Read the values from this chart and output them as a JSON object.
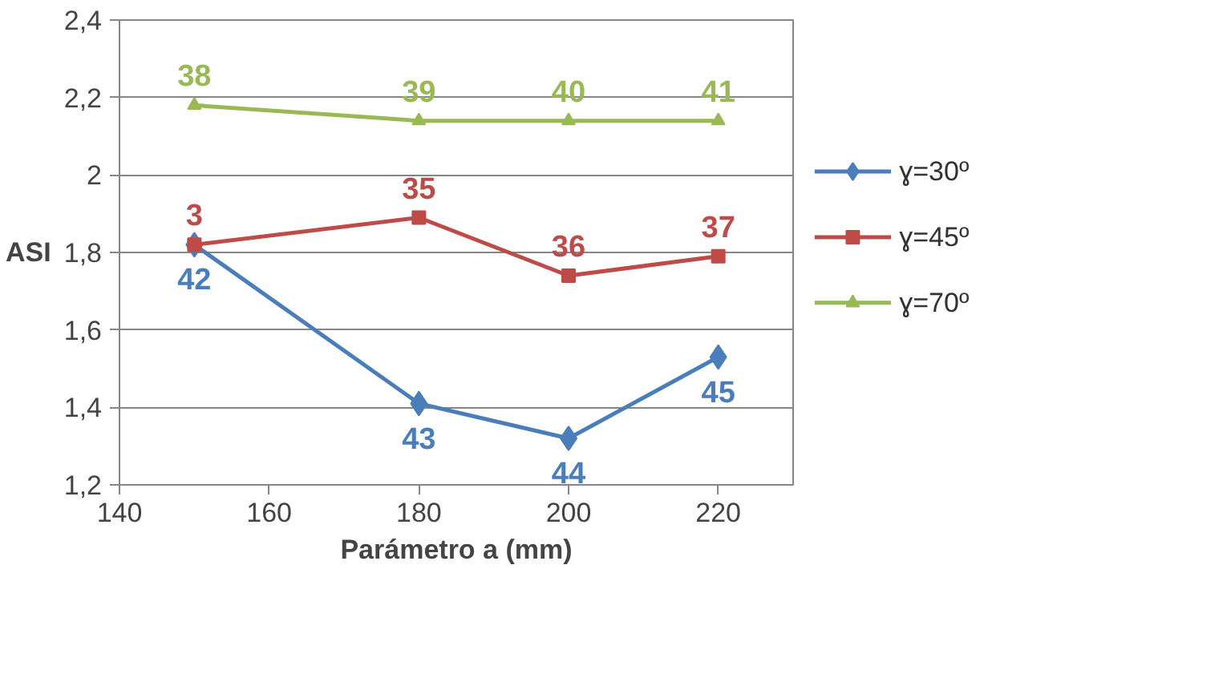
{
  "chart_data": {
    "type": "line",
    "xlabel": "Parámetro a (mm)",
    "ylabel": "ASI",
    "x": [
      150,
      180,
      200,
      220
    ],
    "series": [
      {
        "name": "ɣ=30º",
        "color": "#4a7ebb",
        "marker": "diamond",
        "values": [
          1.82,
          1.41,
          1.32,
          1.53
        ]
      },
      {
        "name": "ɣ=45º",
        "color": "#be4b48",
        "marker": "square",
        "values": [
          1.82,
          1.89,
          1.74,
          1.79
        ]
      },
      {
        "name": "ɣ=70º",
        "color": "#98b954",
        "marker": "triangle",
        "values": [
          2.18,
          2.14,
          2.14,
          2.14
        ]
      }
    ],
    "annotations": [
      {
        "text": "42",
        "x": 150,
        "y": 1.82
      },
      {
        "text": "43",
        "x": 180,
        "y": 1.41
      },
      {
        "text": "44",
        "x": 200,
        "y": 1.32
      },
      {
        "text": "45",
        "x": 220,
        "y": 1.53
      },
      {
        "text": "3",
        "x": 150,
        "y": 1.82
      },
      {
        "text": "35",
        "x": 180,
        "y": 1.89
      },
      {
        "text": "36",
        "x": 200,
        "y": 1.74
      },
      {
        "text": "37",
        "x": 220,
        "y": 1.79
      },
      {
        "text": "38",
        "x": 150,
        "y": 2.18
      },
      {
        "text": "39",
        "x": 180,
        "y": 2.14
      },
      {
        "text": "40",
        "x": 200,
        "y": 2.14
      },
      {
        "text": "41",
        "x": 220,
        "y": 2.14
      }
    ],
    "xlim": [
      140,
      230
    ],
    "xticks": [
      140,
      160,
      180,
      200,
      220
    ],
    "ylim": [
      1.2,
      2.4
    ],
    "yticks": [
      {
        "value": 1.2,
        "label": "1,2"
      },
      {
        "value": 1.4,
        "label": "1,4"
      },
      {
        "value": 1.6,
        "label": "1,6"
      },
      {
        "value": 1.8,
        "label": "1,8"
      },
      2,
      {
        "value": 2.2,
        "label": "2,2"
      },
      {
        "value": 2.4,
        "label": "2,4"
      }
    ],
    "grid": "y",
    "legend": "right",
    "line_style": "solid"
  }
}
